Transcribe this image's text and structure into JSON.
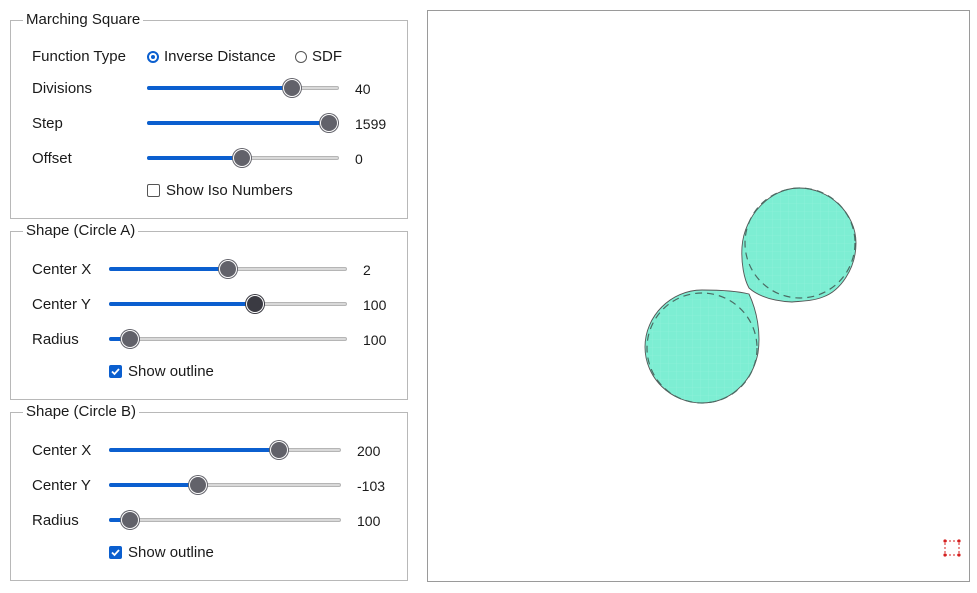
{
  "marching": {
    "title": "Marching Square",
    "function_type_label": "Function Type",
    "options": [
      "Inverse Distance",
      "SDF"
    ],
    "selected": "Inverse Distance",
    "divisions": {
      "label": "Divisions",
      "value": "40",
      "fraction": 0.76
    },
    "step": {
      "label": "Step",
      "value": "1599",
      "fraction": 1.0
    },
    "offset": {
      "label": "Offset",
      "value": "0",
      "fraction": 0.5
    },
    "show_iso_label": "Show Iso Numbers",
    "show_iso": false
  },
  "circle_a": {
    "title": "Shape (Circle A)",
    "center_x": {
      "label": "Center X",
      "value": "2",
      "fraction": 0.5
    },
    "center_y": {
      "label": "Center Y",
      "value": "100",
      "fraction": 0.615
    },
    "radius": {
      "label": "Radius",
      "value": "100",
      "fraction": 0.09
    },
    "show_outline_label": "Show outline",
    "show_outline": true
  },
  "circle_b": {
    "title": "Shape (Circle B)",
    "center_x": {
      "label": "Center X",
      "value": "200",
      "fraction": 0.73
    },
    "center_y": {
      "label": "Center Y",
      "value": "-103",
      "fraction": 0.38
    },
    "radius": {
      "label": "Radius",
      "value": "100",
      "fraction": 0.09
    },
    "show_outline_label": "Show outline",
    "show_outline": true
  },
  "colors": {
    "accent": "#0b5fcf",
    "shape_fill": "#7deed3",
    "thumb": "#62626a"
  },
  "icons": {
    "resize": "resize-corners-icon"
  }
}
